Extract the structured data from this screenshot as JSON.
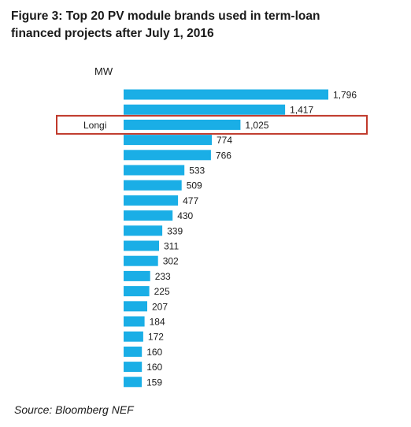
{
  "figure": {
    "title_line1": "Figure 3:  Top 20 PV module brands used in term-loan",
    "title_line2": "financed projects after July 1, 2016",
    "unit_label": "MW",
    "source": "Source: Bloomberg NEF"
  },
  "chart_data": {
    "type": "bar",
    "orientation": "horizontal",
    "categories": [
      "",
      "",
      "Longi",
      "",
      "",
      "",
      "",
      "",
      "",
      "",
      "",
      "",
      "",
      "",
      "",
      "",
      "",
      "",
      "",
      ""
    ],
    "values": [
      1796,
      1417,
      1025,
      774,
      766,
      533,
      509,
      477,
      430,
      339,
      311,
      302,
      233,
      225,
      207,
      184,
      172,
      160,
      160,
      159
    ],
    "value_labels": [
      "1,796",
      "1,417",
      "1,025",
      "774",
      "766",
      "533",
      "509",
      "477",
      "430",
      "339",
      "311",
      "302",
      "233",
      "225",
      "207",
      "184",
      "172",
      "160",
      "160",
      "159"
    ],
    "highlight_category": "Longi",
    "bar_color": "#1aaee6",
    "highlight_color": "#c0392b",
    "xlim": [
      0,
      1796
    ],
    "ylabel": "MW",
    "grid": false,
    "legend": "none"
  }
}
